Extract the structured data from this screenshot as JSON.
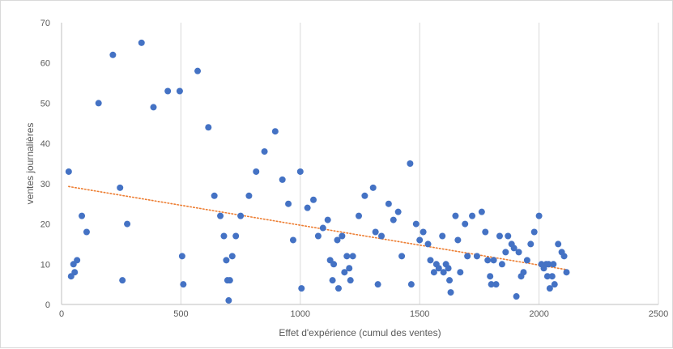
{
  "chart_data": {
    "type": "scatter",
    "title": "",
    "xlabel": "Effet d'expérience (cumul des ventes)",
    "ylabel": "ventes journalières",
    "xlim": [
      0,
      2500
    ],
    "ylim": [
      0,
      70
    ],
    "x_ticks": [
      "0",
      "500",
      "1000",
      "1500",
      "2000",
      "2500"
    ],
    "y_ticks": [
      "0",
      "10",
      "20",
      "30",
      "40",
      "50",
      "60",
      "70"
    ],
    "grid": {
      "x": true,
      "y": false
    },
    "legend": "none",
    "point_color": "#4472c4",
    "trendline": {
      "type": "linear",
      "color": "#ed7d31",
      "style": "dotted",
      "x": [
        30,
        2110
      ],
      "y": [
        29.3,
        8.7
      ]
    },
    "series": [
      {
        "points": [
          [
            30,
            33
          ],
          [
            40,
            7
          ],
          [
            50,
            10
          ],
          [
            55,
            8
          ],
          [
            65,
            11
          ],
          [
            85,
            22
          ],
          [
            105,
            18
          ],
          [
            155,
            50
          ],
          [
            215,
            62
          ],
          [
            245,
            29
          ],
          [
            255,
            6
          ],
          [
            275,
            20
          ],
          [
            335,
            65
          ],
          [
            385,
            49
          ],
          [
            445,
            53
          ],
          [
            495,
            53
          ],
          [
            505,
            12
          ],
          [
            510,
            5
          ],
          [
            570,
            58
          ],
          [
            615,
            44
          ],
          [
            640,
            27
          ],
          [
            665,
            22
          ],
          [
            680,
            17
          ],
          [
            690,
            11
          ],
          [
            695,
            6
          ],
          [
            700,
            1
          ],
          [
            705,
            6
          ],
          [
            715,
            12
          ],
          [
            730,
            17
          ],
          [
            750,
            22
          ],
          [
            785,
            27
          ],
          [
            815,
            33
          ],
          [
            850,
            38
          ],
          [
            895,
            43
          ],
          [
            925,
            31
          ],
          [
            950,
            25
          ],
          [
            970,
            16
          ],
          [
            1000,
            33
          ],
          [
            1005,
            4
          ],
          [
            1030,
            24
          ],
          [
            1055,
            26
          ],
          [
            1075,
            17
          ],
          [
            1095,
            19
          ],
          [
            1115,
            21
          ],
          [
            1125,
            11
          ],
          [
            1135,
            6
          ],
          [
            1140,
            10
          ],
          [
            1155,
            16
          ],
          [
            1160,
            4
          ],
          [
            1175,
            17
          ],
          [
            1185,
            8
          ],
          [
            1195,
            12
          ],
          [
            1205,
            9
          ],
          [
            1210,
            6
          ],
          [
            1220,
            12
          ],
          [
            1245,
            22
          ],
          [
            1270,
            27
          ],
          [
            1305,
            29
          ],
          [
            1315,
            18
          ],
          [
            1325,
            5
          ],
          [
            1340,
            17
          ],
          [
            1370,
            25
          ],
          [
            1390,
            21
          ],
          [
            1410,
            23
          ],
          [
            1425,
            12
          ],
          [
            1460,
            35
          ],
          [
            1465,
            5
          ],
          [
            1485,
            20
          ],
          [
            1500,
            16
          ],
          [
            1515,
            18
          ],
          [
            1535,
            15
          ],
          [
            1545,
            11
          ],
          [
            1560,
            8
          ],
          [
            1570,
            10
          ],
          [
            1580,
            9
          ],
          [
            1595,
            17
          ],
          [
            1600,
            8
          ],
          [
            1610,
            10
          ],
          [
            1620,
            9
          ],
          [
            1625,
            6
          ],
          [
            1630,
            3
          ],
          [
            1650,
            22
          ],
          [
            1660,
            16
          ],
          [
            1670,
            8
          ],
          [
            1690,
            20
          ],
          [
            1700,
            12
          ],
          [
            1720,
            22
          ],
          [
            1740,
            12
          ],
          [
            1760,
            23
          ],
          [
            1775,
            18
          ],
          [
            1785,
            11
          ],
          [
            1795,
            7
          ],
          [
            1800,
            5
          ],
          [
            1810,
            11
          ],
          [
            1820,
            5
          ],
          [
            1835,
            17
          ],
          [
            1845,
            10
          ],
          [
            1860,
            13
          ],
          [
            1870,
            17
          ],
          [
            1885,
            15
          ],
          [
            1895,
            14
          ],
          [
            1905,
            2
          ],
          [
            1915,
            13
          ],
          [
            1925,
            7
          ],
          [
            1935,
            8
          ],
          [
            1950,
            11
          ],
          [
            1965,
            15
          ],
          [
            1980,
            18
          ],
          [
            2000,
            22
          ],
          [
            2010,
            10
          ],
          [
            2020,
            9
          ],
          [
            2030,
            10
          ],
          [
            2035,
            7
          ],
          [
            2040,
            10
          ],
          [
            2045,
            4
          ],
          [
            2055,
            7
          ],
          [
            2060,
            10
          ],
          [
            2065,
            5
          ],
          [
            2080,
            15
          ],
          [
            2095,
            13
          ],
          [
            2105,
            12
          ],
          [
            2115,
            8
          ]
        ]
      }
    ]
  }
}
